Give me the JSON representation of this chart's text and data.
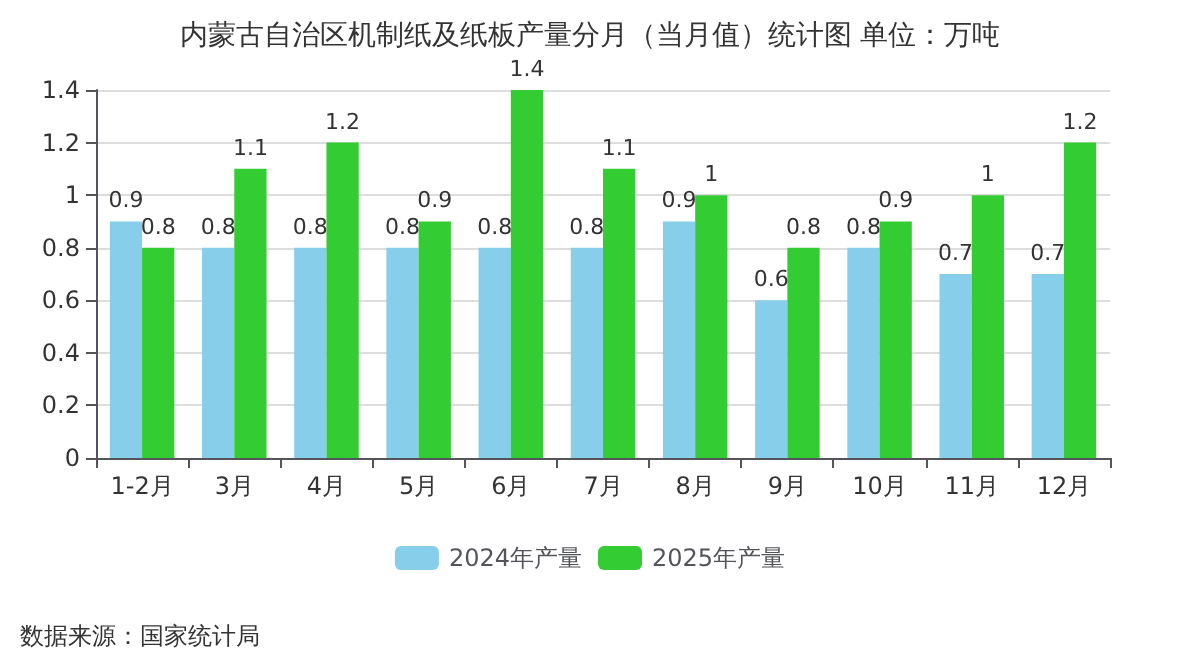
{
  "chart_data": {
    "type": "bar",
    "title": "内蒙古自治区机制纸及纸板产量分月（当月值）统计图 单位：万吨",
    "categories": [
      "1-2月",
      "3月",
      "4月",
      "5月",
      "6月",
      "7月",
      "8月",
      "9月",
      "10月",
      "11月",
      "12月"
    ],
    "series": [
      {
        "name": "2024年产量",
        "color": "#87ceeb",
        "values": [
          0.9,
          0.8,
          0.8,
          0.8,
          0.8,
          0.8,
          0.9,
          0.6,
          0.8,
          0.7,
          0.7
        ]
      },
      {
        "name": "2025年产量",
        "color": "#33cc33",
        "values": [
          0.8,
          1.1,
          1.2,
          0.9,
          1.4,
          1.1,
          1,
          0.8,
          0.9,
          1,
          1.2
        ]
      }
    ],
    "ylim": [
      0,
      1.4
    ],
    "yticks": [
      0,
      0.2,
      0.4,
      0.6,
      0.8,
      1,
      1.2,
      1.4
    ],
    "grid": "y",
    "legend": "bottom",
    "data_labels": true,
    "annotations": [
      "数据来源：国家统计局"
    ]
  }
}
